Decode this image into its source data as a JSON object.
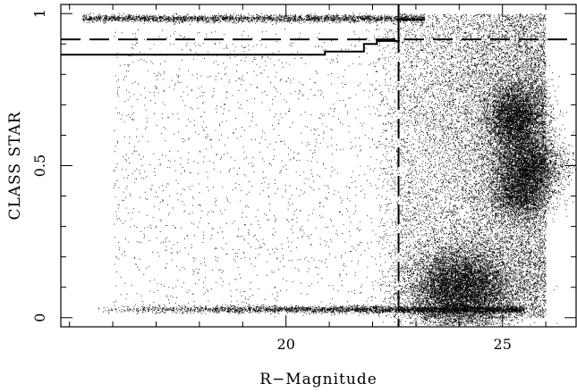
{
  "chart_data": {
    "type": "scatter",
    "title": "",
    "xlabel": "R−Magnitude",
    "ylabel": "CLASS STAR",
    "xlim": [
      14.8,
      26.7
    ],
    "ylim": [
      -0.03,
      1.03
    ],
    "x_ticks": [
      {
        "value": 20,
        "label": "20"
      },
      {
        "value": 25,
        "label": "25"
      }
    ],
    "y_ticks": [
      {
        "value": 0,
        "label": "0"
      },
      {
        "value": 0.5,
        "label": "0.5"
      },
      {
        "value": 1,
        "label": "1"
      }
    ],
    "colors": {
      "points": "#000000",
      "lines": "#000000"
    },
    "grid": false,
    "legend": "none",
    "point_clusters": [
      {
        "name": "star-sequence",
        "x_range": [
          15.3,
          23.2
        ],
        "y_center": 0.985,
        "y_spread": 0.006,
        "count": 2600
      },
      {
        "name": "galaxy-sequence",
        "x_range": [
          15.5,
          25.5
        ],
        "y_center": 0.028,
        "y_spread": 0.006,
        "count": 3400
      },
      {
        "name": "faint-galaxy-blob",
        "x_center": 24.0,
        "x_spread": 0.6,
        "y_center": 0.09,
        "y_spread": 0.07,
        "count": 9000
      },
      {
        "name": "faint-upper-blob",
        "x_center": 25.3,
        "x_spread": 0.35,
        "y_center": 0.66,
        "y_spread": 0.06,
        "count": 4500
      },
      {
        "name": "faint-middle-blob",
        "x_center": 25.6,
        "x_spread": 0.4,
        "y_center": 0.5,
        "y_spread": 0.05,
        "count": 4000
      },
      {
        "name": "faint-lower-blob",
        "x_center": 25.4,
        "x_spread": 0.35,
        "y_center": 0.4,
        "y_spread": 0.04,
        "count": 2000
      },
      {
        "name": "diffuse-faint-cloud",
        "x_range": [
          22.0,
          26.0
        ],
        "y_range": [
          0.0,
          1.0
        ],
        "count": 14000
      },
      {
        "name": "sparse-bright-scatter",
        "x_range": [
          16.0,
          23.0
        ],
        "y_range": [
          0.03,
          0.95
        ],
        "count": 1800
      }
    ],
    "lines": [
      {
        "name": "class-star-threshold",
        "style": "dashed",
        "orientation": "horizontal",
        "y": 0.915,
        "x_range": [
          14.8,
          26.7
        ]
      },
      {
        "name": "magnitude-limit",
        "style": "dashed",
        "orientation": "vertical",
        "x": 22.6,
        "y_range": [
          -0.03,
          1.03
        ]
      },
      {
        "name": "star-selection-boundary",
        "style": "solid",
        "orientation": "step",
        "points": [
          [
            14.8,
            0.865
          ],
          [
            20.9,
            0.865
          ],
          [
            20.9,
            0.875
          ],
          [
            21.8,
            0.875
          ],
          [
            21.8,
            0.9
          ],
          [
            22.1,
            0.9
          ],
          [
            22.1,
            0.91
          ],
          [
            22.6,
            0.91
          ],
          [
            22.6,
            0.98
          ],
          [
            23.2,
            0.98
          ]
        ]
      },
      {
        "name": "magnitude-limit-solid",
        "style": "solid",
        "orientation": "vertical",
        "x": 22.6,
        "y_range": [
          0.91,
          1.03
        ]
      }
    ]
  }
}
